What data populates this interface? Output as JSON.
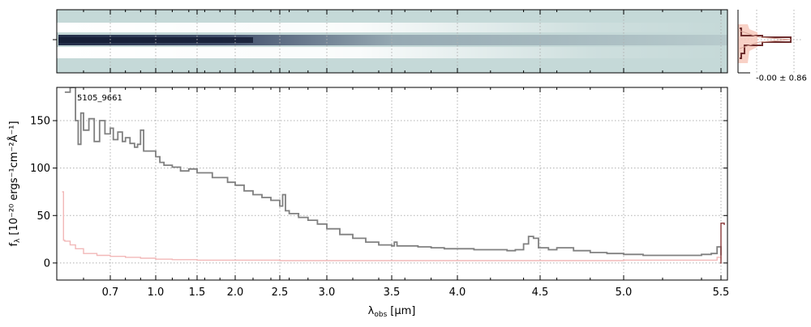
{
  "chart_data": {
    "type": "line",
    "object_label": "5105_9661",
    "xlabel_main": "λ",
    "xlabel_sub": "obs",
    "xlabel_unit": "[μm]",
    "ylabel_text": "f",
    "ylabel_sub": "λ",
    "ylabel_unit": "[10⁻²⁰ ergs⁻¹cm⁻²Å⁻¹]",
    "x_scale": "reciprocal-like (non-linear wavelength)",
    "x_ticks": [
      {
        "value": 0.7,
        "label": "0.7"
      },
      {
        "value": 1.0,
        "label": "1.0"
      },
      {
        "value": 1.5,
        "label": "1.5"
      },
      {
        "value": 2.0,
        "label": "2.0"
      },
      {
        "value": 2.5,
        "label": "2.5"
      },
      {
        "value": 3.0,
        "label": "3.0"
      },
      {
        "value": 3.5,
        "label": "3.5"
      },
      {
        "value": 4.0,
        "label": "4.0"
      },
      {
        "value": 4.5,
        "label": "4.5"
      },
      {
        "value": 5.0,
        "label": "5.0"
      },
      {
        "value": 5.5,
        "label": "5.5"
      }
    ],
    "x_minor_ticks": [
      0.6,
      0.8,
      0.9,
      1.2,
      1.4,
      1.6,
      1.8,
      2.2,
      2.4,
      2.6,
      2.8,
      3.2,
      3.4,
      3.6,
      3.8,
      4.2,
      4.4,
      4.6,
      4.8,
      5.2,
      5.4
    ],
    "ylim": [
      -18,
      185
    ],
    "y_ticks": [
      0,
      50,
      100,
      150
    ],
    "grid": true,
    "series": [
      {
        "color": "#808080",
        "points": [
          [
            0.53,
            180
          ],
          [
            0.55,
            188
          ],
          [
            0.57,
            150
          ],
          [
            0.58,
            125
          ],
          [
            0.59,
            158
          ],
          [
            0.6,
            140
          ],
          [
            0.62,
            152
          ],
          [
            0.64,
            128
          ],
          [
            0.66,
            150
          ],
          [
            0.68,
            136
          ],
          [
            0.7,
            142
          ],
          [
            0.72,
            130
          ],
          [
            0.75,
            138
          ],
          [
            0.78,
            128
          ],
          [
            0.8,
            132
          ],
          [
            0.83,
            126
          ],
          [
            0.86,
            122
          ],
          [
            0.88,
            125
          ],
          [
            0.9,
            140
          ],
          [
            0.92,
            118
          ],
          [
            0.95,
            118
          ],
          [
            1.0,
            112
          ],
          [
            1.05,
            106
          ],
          [
            1.1,
            103
          ],
          [
            1.2,
            101
          ],
          [
            1.3,
            97
          ],
          [
            1.4,
            99
          ],
          [
            1.5,
            95
          ],
          [
            1.7,
            90
          ],
          [
            1.9,
            85
          ],
          [
            2.0,
            82
          ],
          [
            2.1,
            76
          ],
          [
            2.2,
            72
          ],
          [
            2.3,
            69
          ],
          [
            2.4,
            66
          ],
          [
            2.5,
            60
          ],
          [
            2.53,
            72
          ],
          [
            2.56,
            55
          ],
          [
            2.6,
            52
          ],
          [
            2.7,
            48
          ],
          [
            2.8,
            45
          ],
          [
            2.9,
            41
          ],
          [
            3.0,
            36
          ],
          [
            3.1,
            30
          ],
          [
            3.2,
            26
          ],
          [
            3.3,
            22
          ],
          [
            3.4,
            19
          ],
          [
            3.5,
            18
          ],
          [
            3.52,
            22
          ],
          [
            3.54,
            18
          ],
          [
            3.6,
            18
          ],
          [
            3.7,
            17
          ],
          [
            3.8,
            16
          ],
          [
            3.9,
            15
          ],
          [
            4.0,
            15
          ],
          [
            4.1,
            14
          ],
          [
            4.2,
            14
          ],
          [
            4.3,
            13
          ],
          [
            4.35,
            14
          ],
          [
            4.4,
            20
          ],
          [
            4.43,
            28
          ],
          [
            4.46,
            26
          ],
          [
            4.49,
            16
          ],
          [
            4.55,
            14
          ],
          [
            4.6,
            16
          ],
          [
            4.7,
            13
          ],
          [
            4.8,
            11
          ],
          [
            4.9,
            10
          ],
          [
            5.0,
            9
          ],
          [
            5.1,
            8
          ],
          [
            5.2,
            8
          ],
          [
            5.3,
            8
          ],
          [
            5.4,
            9
          ],
          [
            5.45,
            10
          ],
          [
            5.48,
            17
          ],
          [
            5.5,
            8
          ]
        ]
      },
      {
        "color": "#f2b8b8",
        "points": [
          [
            0.52,
            75
          ],
          [
            0.525,
            24
          ],
          [
            0.53,
            23
          ],
          [
            0.55,
            19
          ],
          [
            0.57,
            15
          ],
          [
            0.6,
            10
          ],
          [
            0.65,
            8
          ],
          [
            0.7,
            7
          ],
          [
            0.8,
            6
          ],
          [
            0.9,
            5
          ],
          [
            1.0,
            4
          ],
          [
            1.2,
            3.5
          ],
          [
            1.5,
            3
          ],
          [
            2.0,
            3
          ],
          [
            2.5,
            2.5
          ],
          [
            3.0,
            2.5
          ],
          [
            3.5,
            2.5
          ],
          [
            4.0,
            2.5
          ],
          [
            4.5,
            2.5
          ],
          [
            5.0,
            3
          ],
          [
            5.3,
            3
          ],
          [
            5.45,
            3
          ],
          [
            5.48,
            6
          ],
          [
            5.5,
            3
          ]
        ]
      },
      {
        "color": "#8b3a3a",
        "points": [
          [
            5.495,
            0
          ],
          [
            5.5,
            42
          ],
          [
            5.515,
            40
          ]
        ]
      }
    ],
    "profile_panel": {
      "annotation": "-0.00 ± 0.86"
    }
  }
}
